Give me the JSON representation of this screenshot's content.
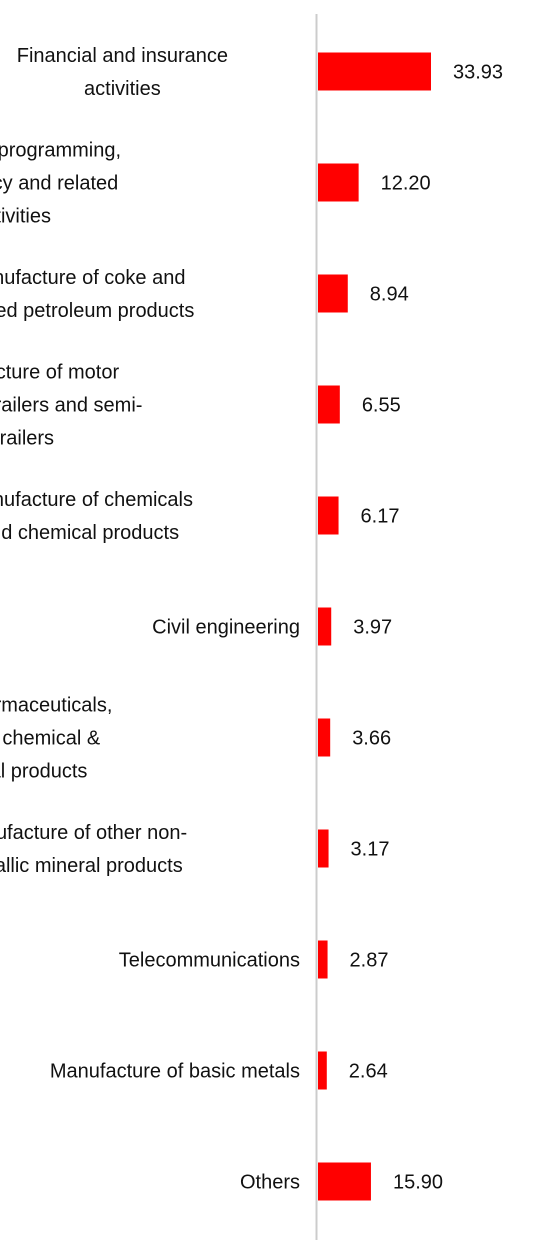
{
  "chart_data": {
    "type": "bar",
    "orientation": "horizontal",
    "title": "",
    "xlabel": "",
    "ylabel": "",
    "categories": [
      [
        "Financial and insurance",
        "activities"
      ],
      [
        "Computer programming,",
        "consultancy and related",
        "activities"
      ],
      [
        "Manufacture of coke and",
        "refined petroleum products"
      ],
      [
        "Manufacture of motor",
        "vehicles, trailers and semi-",
        "trailers"
      ],
      [
        "Manufacture of chemicals",
        "and chemical products"
      ],
      [
        "Civil engineering"
      ],
      [
        "Mfg of pharmaceuticals,",
        "medicinal chemical &",
        "botanical products"
      ],
      [
        "Manufacture of other non-",
        "metallic mineral products"
      ],
      [
        "Telecommunications"
      ],
      [
        "Manufacture of basic metals"
      ],
      [
        "Others"
      ]
    ],
    "values": [
      33.93,
      12.2,
      8.94,
      6.55,
      6.17,
      3.97,
      3.66,
      3.17,
      2.87,
      2.64,
      15.9
    ],
    "value_labels": [
      "33.93",
      "12.20",
      "8.94",
      "6.55",
      "6.17",
      "3.97",
      "3.66",
      "3.17",
      "2.87",
      "2.64",
      "15.90"
    ],
    "bar_color": "#ff0000",
    "axis_color": "#cccccc",
    "grid": false,
    "legend": "none"
  }
}
